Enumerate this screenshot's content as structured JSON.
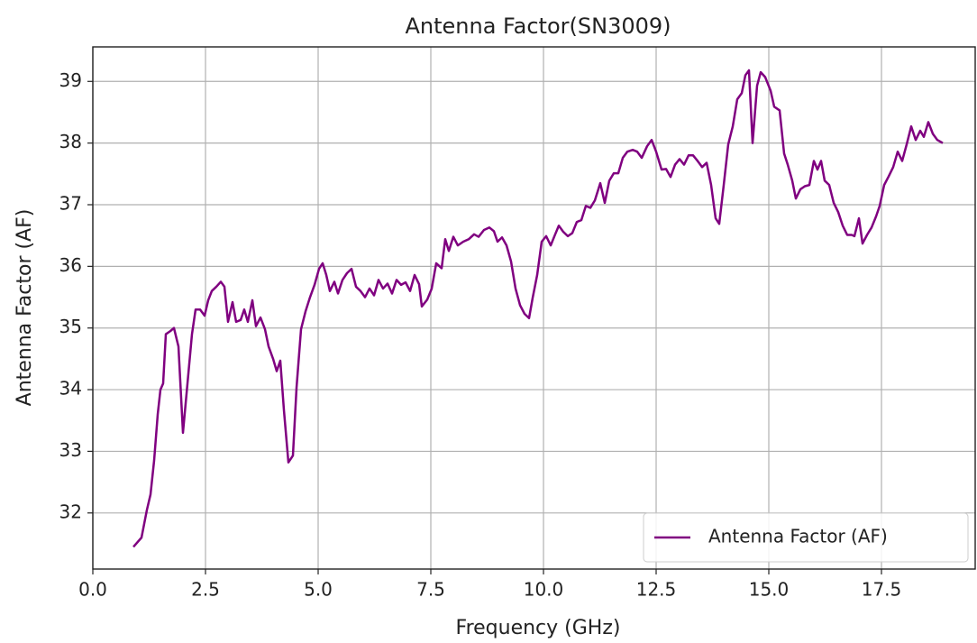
{
  "chart_data": {
    "type": "line",
    "title": "Antenna Factor(SN3009)",
    "x_label": "Frequency (GHz)",
    "y_label": "Antenna Factor (AF)",
    "x": [
      0.9,
      1.08,
      1.2,
      1.28,
      1.36,
      1.44,
      1.5,
      1.56,
      1.62,
      1.72,
      1.8,
      1.9,
      2.0,
      2.1,
      2.2,
      2.28,
      2.38,
      2.48,
      2.56,
      2.64,
      2.74,
      2.84,
      2.92,
      3.0,
      3.1,
      3.18,
      3.28,
      3.36,
      3.44,
      3.54,
      3.62,
      3.72,
      3.82,
      3.9,
      4.0,
      4.08,
      4.16,
      4.24,
      4.34,
      4.44,
      4.52,
      4.62,
      4.72,
      4.82,
      4.92,
      5.02,
      5.1,
      5.18,
      5.26,
      5.36,
      5.44,
      5.54,
      5.64,
      5.74,
      5.84,
      5.94,
      6.04,
      6.14,
      6.24,
      6.34,
      6.44,
      6.54,
      6.64,
      6.74,
      6.84,
      6.94,
      7.04,
      7.14,
      7.24,
      7.3,
      7.42,
      7.52,
      7.62,
      7.74,
      7.82,
      7.9,
      8.0,
      8.1,
      8.22,
      8.34,
      8.46,
      8.56,
      8.68,
      8.8,
      8.9,
      8.98,
      9.08,
      9.18,
      9.28,
      9.38,
      9.48,
      9.58,
      9.68,
      9.76,
      9.86,
      9.96,
      10.06,
      10.16,
      10.26,
      10.34,
      10.44,
      10.54,
      10.64,
      10.74,
      10.84,
      10.94,
      11.04,
      11.14,
      11.26,
      11.36,
      11.46,
      11.56,
      11.66,
      11.76,
      11.86,
      11.98,
      12.08,
      12.18,
      12.3,
      12.4,
      12.5,
      12.62,
      12.72,
      12.82,
      12.92,
      13.02,
      13.12,
      13.22,
      13.32,
      13.42,
      13.52,
      13.62,
      13.72,
      13.82,
      13.9,
      14.0,
      14.1,
      14.2,
      14.3,
      14.4,
      14.48,
      14.56,
      14.64,
      14.74,
      14.82,
      14.92,
      15.04,
      15.12,
      15.24,
      15.34,
      15.42,
      15.52,
      15.6,
      15.7,
      15.8,
      15.9,
      16.0,
      16.08,
      16.16,
      16.24,
      16.34,
      16.44,
      16.54,
      16.64,
      16.74,
      16.84,
      16.9,
      17.0,
      17.08,
      17.18,
      17.28,
      17.38,
      17.46,
      17.56,
      17.66,
      17.76,
      17.86,
      17.96,
      18.06,
      18.16,
      18.26,
      18.36,
      18.44,
      18.54,
      18.64,
      18.74,
      18.86
    ],
    "series": [
      {
        "name": "Antenna Factor (AF)",
        "color": "#800080",
        "values": [
          31.45,
          31.6,
          32.05,
          32.3,
          32.85,
          33.6,
          34.0,
          34.1,
          34.9,
          34.95,
          35.0,
          34.7,
          33.3,
          34.1,
          34.9,
          35.3,
          35.3,
          35.2,
          35.45,
          35.6,
          35.67,
          35.75,
          35.67,
          35.1,
          35.42,
          35.1,
          35.13,
          35.3,
          35.1,
          35.45,
          35.03,
          35.17,
          34.98,
          34.7,
          34.5,
          34.3,
          34.47,
          33.67,
          32.82,
          32.93,
          34.03,
          34.98,
          35.27,
          35.5,
          35.7,
          35.96,
          36.05,
          35.86,
          35.6,
          35.75,
          35.56,
          35.78,
          35.89,
          35.96,
          35.67,
          35.6,
          35.5,
          35.64,
          35.53,
          35.78,
          35.64,
          35.72,
          35.56,
          35.78,
          35.7,
          35.74,
          35.6,
          35.86,
          35.71,
          35.35,
          35.46,
          35.64,
          36.05,
          35.97,
          36.44,
          36.25,
          36.48,
          36.34,
          36.4,
          36.44,
          36.52,
          36.48,
          36.59,
          36.63,
          36.57,
          36.4,
          36.47,
          36.34,
          36.08,
          35.64,
          35.37,
          35.23,
          35.16,
          35.49,
          35.86,
          36.4,
          36.49,
          36.34,
          36.52,
          36.66,
          36.56,
          36.49,
          36.54,
          36.72,
          36.75,
          36.98,
          36.95,
          37.07,
          37.35,
          37.03,
          37.39,
          37.51,
          37.51,
          37.76,
          37.86,
          37.89,
          37.86,
          37.76,
          37.95,
          38.05,
          37.86,
          37.57,
          37.58,
          37.45,
          37.65,
          37.74,
          37.65,
          37.8,
          37.8,
          37.71,
          37.61,
          37.68,
          37.32,
          36.78,
          36.69,
          37.32,
          37.98,
          38.27,
          38.71,
          38.81,
          39.1,
          39.18,
          38.0,
          38.93,
          39.15,
          39.07,
          38.85,
          38.59,
          38.53,
          37.83,
          37.65,
          37.39,
          37.1,
          37.25,
          37.3,
          37.32,
          37.71,
          37.57,
          37.71,
          37.39,
          37.32,
          37.03,
          36.88,
          36.66,
          36.51,
          36.51,
          36.49,
          36.78,
          36.37,
          36.51,
          36.63,
          36.81,
          36.98,
          37.32,
          37.46,
          37.61,
          37.86,
          37.71,
          37.98,
          38.27,
          38.05,
          38.2,
          38.1,
          38.34,
          38.15,
          38.05,
          38.0
        ]
      }
    ],
    "xlim": [
      0,
      19.58
    ],
    "ylim": [
      31.09,
      39.56
    ],
    "xticks": [
      {
        "value": 0,
        "label": "0.0"
      },
      2.5,
      {
        "value": 5,
        "label": "5.0"
      },
      7.5,
      {
        "value": 10,
        "label": "10.0"
      },
      12.5,
      {
        "value": 15,
        "label": "15.0"
      },
      17.5
    ],
    "yticks": [
      32,
      33,
      34,
      35,
      36,
      37,
      38,
      39
    ],
    "grid": true,
    "legend": "lower right"
  }
}
